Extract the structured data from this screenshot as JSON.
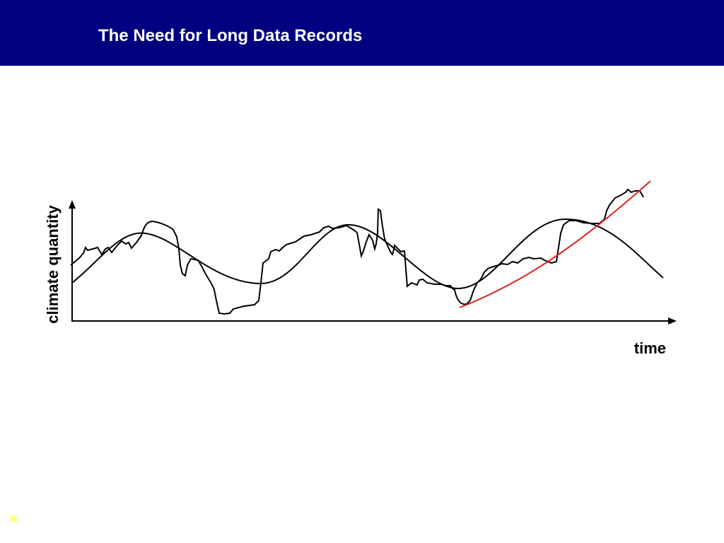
{
  "slide": {
    "title": "The Need for Long Data Records",
    "page_number": "30"
  },
  "diagram": {
    "y_axis_label": "climate quantity",
    "x_axis_label": "time",
    "colors": {
      "title_bar": "#000080",
      "title_text": "#ffffff",
      "curves": "#000000",
      "trend_curve": "#e02020",
      "page_number": "#ffff00"
    }
  }
}
